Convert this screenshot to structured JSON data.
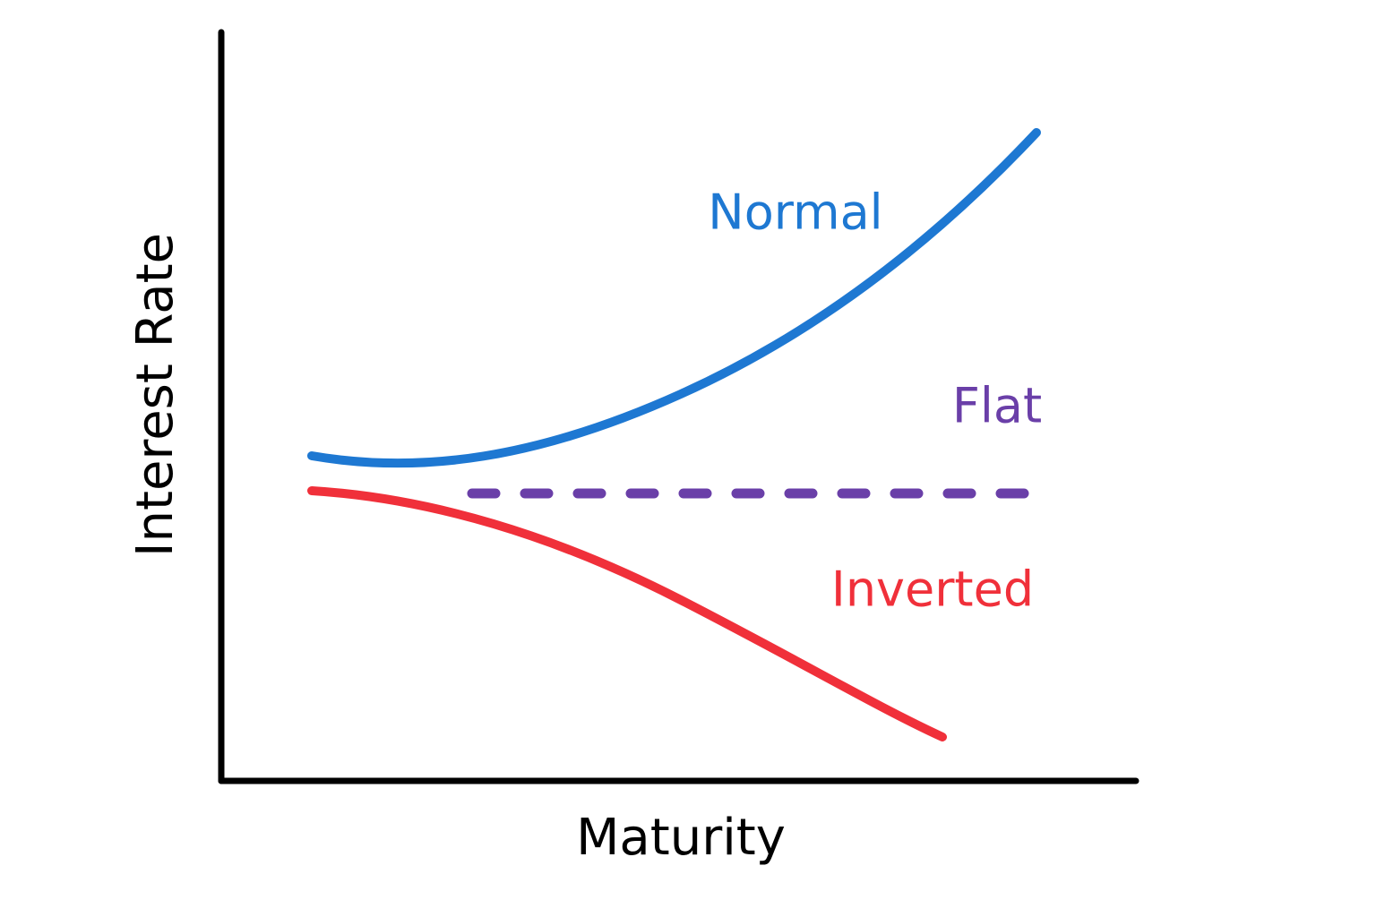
{
  "axes": {
    "x_label": "Maturity",
    "y_label": "Interest Rate"
  },
  "curves": [
    {
      "label": "Normal"
    },
    {
      "label": "Flat"
    },
    {
      "label": "Inverted"
    }
  ]
}
